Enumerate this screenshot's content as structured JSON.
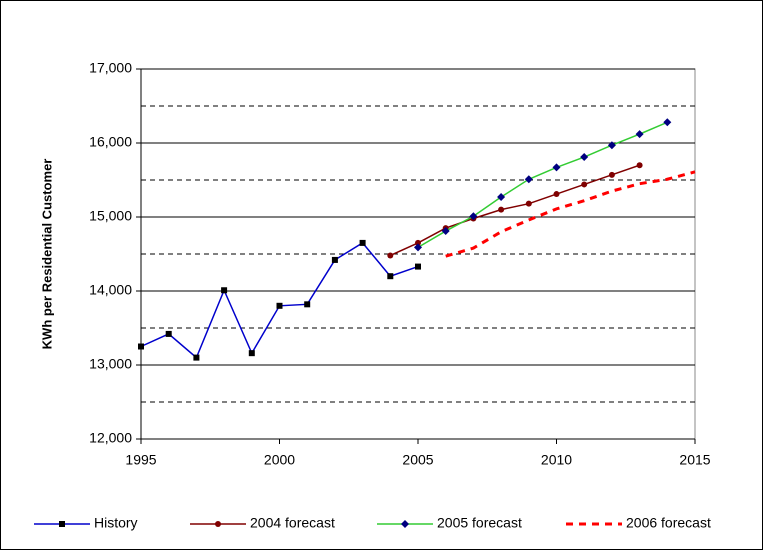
{
  "chart_data": {
    "type": "line",
    "y_label": "KWh per Residential Customer",
    "x": [
      1995,
      1996,
      1997,
      1998,
      1999,
      2000,
      2001,
      2002,
      2003,
      2004,
      2005,
      2006,
      2007,
      2008,
      2009,
      2010,
      2011,
      2012,
      2013,
      2014,
      2015
    ],
    "series": [
      {
        "name": "History",
        "color": "#0000cc",
        "marker": "square",
        "dash": false,
        "values": [
          13250,
          13420,
          13100,
          14010,
          13160,
          13800,
          13820,
          14420,
          14650,
          14200,
          14330,
          null,
          null,
          null,
          null,
          null,
          null,
          null,
          null,
          null,
          null
        ]
      },
      {
        "name": "2004 forecast",
        "color": "#800000",
        "marker": "circle",
        "dash": false,
        "values": [
          null,
          null,
          null,
          null,
          null,
          null,
          null,
          null,
          null,
          14480,
          14650,
          14850,
          14980,
          15100,
          15180,
          15310,
          15440,
          15570,
          15700,
          null,
          null
        ]
      },
      {
        "name": "2005 forecast",
        "color": "#33cc33",
        "marker": "diamond",
        "marker_color": "#000080",
        "dash": false,
        "values": [
          null,
          null,
          null,
          null,
          null,
          null,
          null,
          null,
          null,
          null,
          14590,
          14810,
          15010,
          15270,
          15510,
          15670,
          15810,
          15970,
          16120,
          16280,
          null
        ]
      },
      {
        "name": "2006 forecast",
        "color": "#ff0000",
        "marker": "none",
        "dash": true,
        "values": [
          null,
          null,
          null,
          null,
          null,
          null,
          null,
          null,
          null,
          null,
          null,
          14470,
          14580,
          14800,
          14960,
          15110,
          15220,
          15350,
          15450,
          15510,
          15610
        ]
      }
    ],
    "xlim": [
      1995,
      2015
    ],
    "xticks": [
      1995,
      2000,
      2005,
      2010,
      2015
    ],
    "ylim": [
      12000,
      17000
    ],
    "yticks": [
      {
        "value": 12000,
        "label": "12,000"
      },
      {
        "value": 13000,
        "label": "13,000"
      },
      {
        "value": 14000,
        "label": "14,000"
      },
      {
        "value": 15000,
        "label": "15,000"
      },
      {
        "value": 16000,
        "label": "16,000"
      },
      {
        "value": 17000,
        "label": "17,000"
      }
    ],
    "minor_gridlines": [
      12500,
      13500,
      14500,
      15500,
      16500
    ],
    "grid": true,
    "legend": "bottom"
  }
}
